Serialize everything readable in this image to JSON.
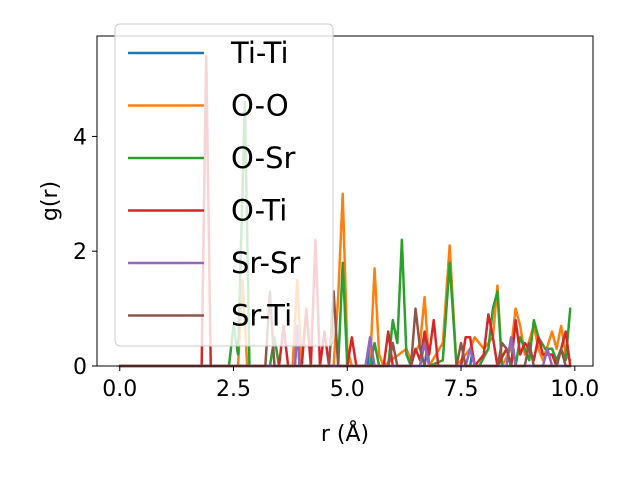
{
  "chart_data": {
    "type": "line",
    "title": "",
    "xlabel": "r (Å)",
    "ylabel": "g(r)",
    "xlim": [
      -0.5,
      10.4
    ],
    "ylim": [
      0,
      5.75
    ],
    "xticks": [
      0.0,
      2.5,
      5.0,
      7.5,
      10.0
    ],
    "xtick_labels": [
      "0.0",
      "2.5",
      "5.0",
      "7.5",
      "10.0"
    ],
    "yticks": [
      0,
      2,
      4
    ],
    "ytick_labels": [
      "0",
      "2",
      "4"
    ],
    "grid": false,
    "legend_position": "upper-left",
    "series": [
      {
        "name": "Ti-Ti",
        "color": "#1f77b4",
        "points": [
          [
            0.0,
            0
          ],
          [
            3.85,
            0
          ],
          [
            3.9,
            0.7
          ],
          [
            3.95,
            0
          ],
          [
            5.45,
            0
          ],
          [
            5.5,
            0.4
          ],
          [
            5.55,
            0
          ],
          [
            6.7,
            0
          ],
          [
            6.75,
            0.3
          ],
          [
            6.8,
            0
          ],
          [
            7.7,
            0
          ],
          [
            7.75,
            0.25
          ],
          [
            7.8,
            0
          ],
          [
            8.6,
            0
          ],
          [
            8.65,
            0.3
          ],
          [
            8.7,
            0
          ],
          [
            9.9,
            0
          ]
        ]
      },
      {
        "name": "O-O",
        "color": "#ff7f0e",
        "points": [
          [
            0.0,
            0
          ],
          [
            2.6,
            0
          ],
          [
            2.7,
            1.5
          ],
          [
            2.8,
            0
          ],
          [
            3.8,
            0
          ],
          [
            3.9,
            1.5
          ],
          [
            4.0,
            0
          ],
          [
            4.7,
            0
          ],
          [
            4.8,
            1.2
          ],
          [
            4.9,
            3.0
          ],
          [
            5.0,
            0.3
          ],
          [
            5.1,
            0
          ],
          [
            5.5,
            0
          ],
          [
            5.6,
            1.7
          ],
          [
            5.7,
            0.2
          ],
          [
            5.8,
            0
          ],
          [
            6.3,
            0.3
          ],
          [
            6.4,
            0.1
          ],
          [
            6.6,
            0.4
          ],
          [
            6.7,
            1.2
          ],
          [
            6.8,
            0
          ],
          [
            7.1,
            0.4
          ],
          [
            7.25,
            2.1
          ],
          [
            7.4,
            0
          ],
          [
            7.7,
            0.3
          ],
          [
            7.8,
            0.5
          ],
          [
            8.0,
            0.3
          ],
          [
            8.2,
            0.5
          ],
          [
            8.3,
            1.4
          ],
          [
            8.4,
            0
          ],
          [
            8.6,
            0.3
          ],
          [
            8.7,
            1.0
          ],
          [
            8.8,
            0.7
          ],
          [
            8.9,
            0.2
          ],
          [
            9.1,
            0.7
          ],
          [
            9.2,
            0.3
          ],
          [
            9.3,
            0.1
          ],
          [
            9.5,
            0.6
          ],
          [
            9.6,
            0.3
          ],
          [
            9.7,
            0.7
          ],
          [
            9.8,
            0.2
          ],
          [
            9.9,
            0.1
          ]
        ]
      },
      {
        "name": "O-Sr",
        "color": "#2ca02c",
        "points": [
          [
            0.0,
            0
          ],
          [
            2.4,
            0
          ],
          [
            2.5,
            0.7
          ],
          [
            2.6,
            0.2
          ],
          [
            2.75,
            4.6
          ],
          [
            2.85,
            0
          ],
          [
            3.3,
            0
          ],
          [
            3.4,
            0.5
          ],
          [
            3.5,
            0
          ],
          [
            4.8,
            0
          ],
          [
            4.9,
            1.8
          ],
          [
            5.0,
            0
          ],
          [
            5.5,
            0
          ],
          [
            5.6,
            0.4
          ],
          [
            5.7,
            0
          ],
          [
            5.9,
            0
          ],
          [
            6.0,
            0.8
          ],
          [
            6.1,
            0.4
          ],
          [
            6.2,
            2.2
          ],
          [
            6.3,
            0.2
          ],
          [
            6.4,
            0
          ],
          [
            6.6,
            0
          ],
          [
            6.7,
            0.5
          ],
          [
            6.8,
            0
          ],
          [
            7.1,
            0.1
          ],
          [
            7.25,
            1.8
          ],
          [
            7.4,
            0
          ],
          [
            7.9,
            0
          ],
          [
            8.1,
            0.3
          ],
          [
            8.2,
            1.0
          ],
          [
            8.3,
            1.3
          ],
          [
            8.4,
            0
          ],
          [
            8.7,
            0
          ],
          [
            8.8,
            0.5
          ],
          [
            8.9,
            0.3
          ],
          [
            9.0,
            0.1
          ],
          [
            9.1,
            0.8
          ],
          [
            9.2,
            0.5
          ],
          [
            9.35,
            0.3
          ],
          [
            9.5,
            0.3
          ],
          [
            9.6,
            0.1
          ],
          [
            9.7,
            0.3
          ],
          [
            9.8,
            0.1
          ],
          [
            9.9,
            1.0
          ]
        ]
      },
      {
        "name": "O-Ti",
        "color": "#d62728",
        "points": [
          [
            0.0,
            0
          ],
          [
            1.8,
            0
          ],
          [
            1.9,
            5.4
          ],
          [
            2.0,
            0
          ],
          [
            3.5,
            0
          ],
          [
            3.6,
            0.7
          ],
          [
            3.7,
            0
          ],
          [
            4.0,
            0
          ],
          [
            4.1,
            1.0
          ],
          [
            4.2,
            0
          ],
          [
            4.3,
            2.2
          ],
          [
            4.4,
            0
          ],
          [
            4.5,
            0.6
          ],
          [
            4.6,
            0
          ],
          [
            5.0,
            0
          ],
          [
            5.1,
            0.5
          ],
          [
            5.2,
            0
          ],
          [
            5.8,
            0
          ],
          [
            5.9,
            0.6
          ],
          [
            6.0,
            0
          ],
          [
            6.4,
            0
          ],
          [
            6.5,
            0.3
          ],
          [
            6.6,
            0.1
          ],
          [
            6.7,
            0.6
          ],
          [
            6.8,
            0.2
          ],
          [
            6.9,
            0.8
          ],
          [
            7.0,
            0
          ],
          [
            7.5,
            0
          ],
          [
            7.6,
            0.5
          ],
          [
            7.7,
            0.5
          ],
          [
            7.8,
            0
          ],
          [
            8.0,
            0.2
          ],
          [
            8.1,
            0.9
          ],
          [
            8.2,
            0.5
          ],
          [
            8.3,
            0
          ],
          [
            8.5,
            0.3
          ],
          [
            8.6,
            0
          ],
          [
            8.7,
            0.8
          ],
          [
            8.8,
            0.2
          ],
          [
            8.9,
            0.4
          ],
          [
            9.0,
            0.3
          ],
          [
            9.1,
            0.1
          ],
          [
            9.2,
            0.5
          ],
          [
            9.3,
            0.2
          ],
          [
            9.5,
            0.2
          ],
          [
            9.6,
            0
          ],
          [
            9.8,
            0.6
          ],
          [
            9.9,
            0
          ]
        ]
      },
      {
        "name": "Sr-Sr",
        "color": "#9467bd",
        "points": [
          [
            0.0,
            0
          ],
          [
            3.85,
            0
          ],
          [
            3.9,
            0.7
          ],
          [
            3.95,
            0
          ],
          [
            5.4,
            0
          ],
          [
            5.5,
            0.5
          ],
          [
            5.6,
            0
          ],
          [
            6.6,
            0
          ],
          [
            6.7,
            0.4
          ],
          [
            6.8,
            0
          ],
          [
            7.6,
            0
          ],
          [
            7.7,
            0.3
          ],
          [
            7.8,
            0
          ],
          [
            8.5,
            0
          ],
          [
            8.6,
            0.5
          ],
          [
            8.7,
            0
          ],
          [
            9.3,
            0
          ],
          [
            9.4,
            0.3
          ],
          [
            9.5,
            0
          ],
          [
            9.9,
            0
          ]
        ]
      },
      {
        "name": "Sr-Ti",
        "color": "#8c564b",
        "points": [
          [
            0.0,
            0
          ],
          [
            3.2,
            0
          ],
          [
            3.3,
            1.3
          ],
          [
            3.4,
            0
          ],
          [
            4.6,
            0
          ],
          [
            4.7,
            1.3
          ],
          [
            4.8,
            0
          ],
          [
            5.9,
            0
          ],
          [
            6.0,
            0.4
          ],
          [
            6.1,
            0
          ],
          [
            6.4,
            0
          ],
          [
            6.5,
            1.0
          ],
          [
            6.6,
            0.3
          ],
          [
            6.7,
            0
          ],
          [
            7.4,
            0
          ],
          [
            7.5,
            0.4
          ],
          [
            7.6,
            0
          ],
          [
            8.3,
            0
          ],
          [
            8.4,
            0.4
          ],
          [
            8.5,
            0.3
          ],
          [
            8.6,
            0
          ],
          [
            8.9,
            0
          ],
          [
            9.0,
            0.4
          ],
          [
            9.1,
            0
          ],
          [
            9.6,
            0
          ],
          [
            9.7,
            0.3
          ],
          [
            9.8,
            0
          ],
          [
            9.9,
            0
          ]
        ]
      }
    ]
  }
}
